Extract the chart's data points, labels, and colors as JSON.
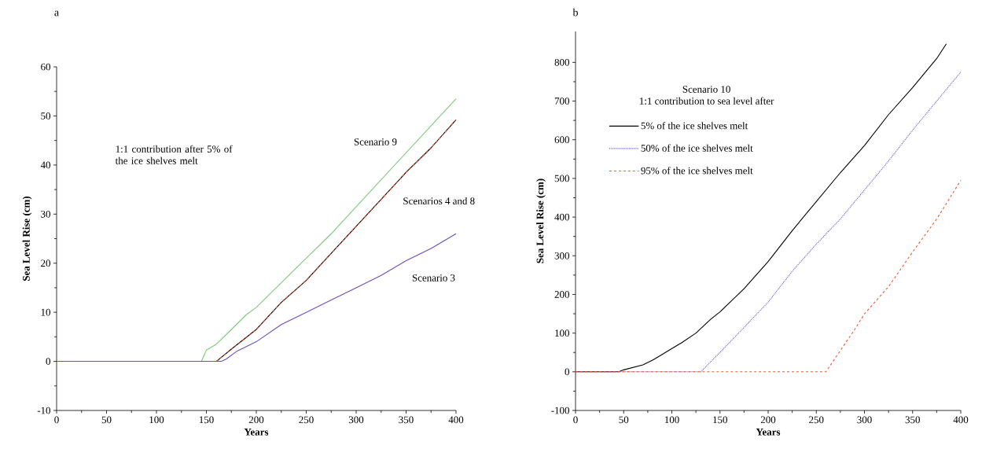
{
  "chart_data": [
    {
      "type": "line",
      "title": "a",
      "xlabel": "Years",
      "ylabel": "Sea  Level  Rise  (cm)",
      "xlim": [
        0,
        400
      ],
      "ylim": [
        -10,
        60
      ],
      "xticks": [
        0,
        50,
        100,
        150,
        200,
        250,
        300,
        350,
        400
      ],
      "yticks": [
        -10,
        0,
        10,
        20,
        30,
        40,
        50,
        60
      ],
      "grid": false,
      "legend": false,
      "annotations": [
        "1:1 contribution after 5% of the ice shelves melt",
        "Scenarios 4 and 8"
      ],
      "series": [
        {
          "name": "Scenario 9",
          "color": "#7dc87a",
          "line_style": "solid",
          "x": [
            0,
            145,
            150,
            160,
            175,
            190,
            200,
            225,
            250,
            275,
            300,
            325,
            350,
            375,
            400
          ],
          "values": [
            0,
            0,
            2.3,
            3.5,
            6.5,
            9.5,
            11,
            16,
            21,
            26,
            31.5,
            37,
            42.5,
            48,
            53.5
          ]
        },
        {
          "color": "#000000",
          "line_style": "solid",
          "x": [
            0,
            160,
            175,
            200,
            225,
            250,
            275,
            300,
            325,
            350,
            375,
            400
          ],
          "values": [
            0,
            0,
            2.5,
            6.5,
            12,
            16.5,
            22,
            27.5,
            33,
            38.5,
            43.5,
            49.2
          ]
        },
        {
          "color": "#e8502a",
          "line_style": "dashed",
          "x": [
            0,
            160,
            175,
            200,
            225,
            250,
            275,
            300,
            325,
            350,
            375,
            400
          ],
          "values": [
            0,
            0,
            2.5,
            6.5,
            12,
            16.5,
            22,
            27.5,
            33,
            38.5,
            43.5,
            49.2
          ]
        },
        {
          "name": "Scenario 3",
          "color": "#6a4fb5",
          "line_style": "solid",
          "x": [
            0,
            165,
            170,
            180,
            200,
            225,
            250,
            275,
            300,
            325,
            350,
            375,
            400
          ],
          "values": [
            0,
            0,
            0.5,
            2,
            4,
            7.5,
            10,
            12.5,
            15,
            17.5,
            20.5,
            23,
            26
          ]
        }
      ]
    },
    {
      "type": "line",
      "title": "b",
      "xlabel": "Years",
      "ylabel": "Sea  Level  Rise  (cm)",
      "xlim": [
        0,
        400
      ],
      "ylim": [
        -100,
        880
      ],
      "xticks": [
        0,
        50,
        100,
        150,
        200,
        250,
        300,
        350,
        400
      ],
      "yticks": [
        -100,
        0,
        100,
        200,
        300,
        400,
        500,
        600,
        700,
        800
      ],
      "grid": false,
      "legend": "top left",
      "annotations": [
        "Scenario 10"
      ],
      "legend_title": "1:1 contribution to sea level after",
      "series": [
        {
          "name": "5% of the ice shelves melt",
          "color": "#000000",
          "line_style": "solid",
          "x": [
            0,
            45,
            50,
            70,
            80,
            90,
            100,
            110,
            125,
            140,
            150,
            175,
            200,
            225,
            250,
            275,
            300,
            325,
            350,
            375,
            385
          ],
          "values": [
            0,
            0,
            5,
            18,
            30,
            45,
            60,
            75,
            100,
            135,
            155,
            215,
            285,
            365,
            440,
            515,
            585,
            665,
            735,
            810,
            848
          ]
        },
        {
          "name": "50% of the ice shelves melt",
          "color": "#6a5acd",
          "line_style": "dotted",
          "x": [
            0,
            130,
            150,
            175,
            200,
            225,
            250,
            275,
            300,
            325,
            350,
            375,
            400
          ],
          "values": [
            0,
            0,
            50,
            115,
            180,
            260,
            330,
            395,
            470,
            545,
            625,
            700,
            775
          ]
        },
        {
          "name": "95% of the ice shelves melt",
          "color": "#f05a28",
          "line_style": "dashed",
          "x": [
            0,
            260,
            275,
            290,
            300,
            325,
            350,
            375,
            400
          ],
          "values": [
            0,
            0,
            55,
            110,
            150,
            220,
            310,
            395,
            495
          ]
        }
      ]
    }
  ]
}
